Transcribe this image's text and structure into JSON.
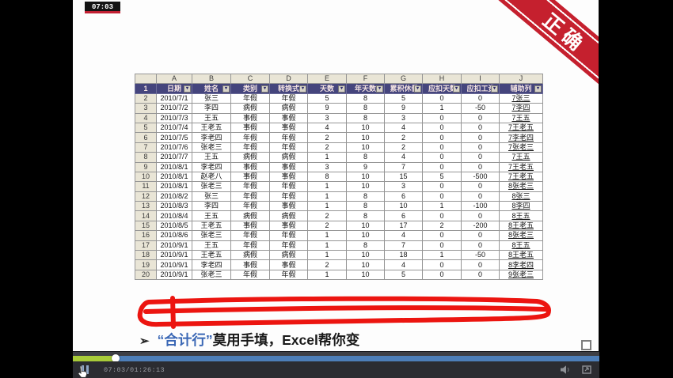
{
  "player": {
    "timestamp_badge": "07:03",
    "time_display": "07:03/01:26:13"
  },
  "slide": {
    "ribbon_label": "正确",
    "bullet_marker": "➢",
    "bullet_highlight": "“合计行”",
    "bullet_text": "莫用手填，Excel帮你变"
  },
  "spreadsheet": {
    "column_letters": [
      "A",
      "B",
      "C",
      "D",
      "E",
      "F",
      "G",
      "H",
      "I",
      "J"
    ],
    "header_row_number": "1",
    "headers": [
      "日期",
      "姓名",
      "类别",
      "转换式",
      "天数",
      "年天数",
      "累积休假",
      "应扣天数",
      "应扣工资",
      "辅助列"
    ],
    "rows": [
      {
        "num": "2",
        "cells": [
          "2010/7/1",
          "张三",
          "年假",
          "年假",
          "5",
          "8",
          "5",
          "0",
          "0",
          "7张三"
        ]
      },
      {
        "num": "3",
        "cells": [
          "2010/7/2",
          "李四",
          "病假",
          "病假",
          "9",
          "8",
          "9",
          "1",
          "-50",
          "7李四"
        ]
      },
      {
        "num": "4",
        "cells": [
          "2010/7/3",
          "王五",
          "事假",
          "事假",
          "3",
          "8",
          "3",
          "0",
          "0",
          "7王五"
        ]
      },
      {
        "num": "5",
        "cells": [
          "2010/7/4",
          "王老五",
          "事假",
          "事假",
          "4",
          "10",
          "4",
          "0",
          "0",
          "7王老五"
        ]
      },
      {
        "num": "6",
        "cells": [
          "2010/7/5",
          "李老四",
          "年假",
          "年假",
          "2",
          "10",
          "2",
          "0",
          "0",
          "7李老四"
        ]
      },
      {
        "num": "7",
        "cells": [
          "2010/7/6",
          "张老三",
          "年假",
          "年假",
          "2",
          "10",
          "2",
          "0",
          "0",
          "7张老三"
        ]
      },
      {
        "num": "8",
        "cells": [
          "2010/7/7",
          "王五",
          "病假",
          "病假",
          "1",
          "8",
          "4",
          "0",
          "0",
          "7王五"
        ]
      },
      {
        "num": "9",
        "cells": [
          "2010/8/1",
          "李老四",
          "事假",
          "事假",
          "3",
          "9",
          "7",
          "0",
          "0",
          "7王老五"
        ]
      },
      {
        "num": "10",
        "cells": [
          "2010/8/1",
          "赵老八",
          "事假",
          "事假",
          "8",
          "10",
          "15",
          "5",
          "-500",
          "7王老五"
        ]
      },
      {
        "num": "11",
        "cells": [
          "2010/8/1",
          "张老三",
          "年假",
          "年假",
          "1",
          "10",
          "3",
          "0",
          "0",
          "8张老三"
        ]
      },
      {
        "num": "12",
        "cells": [
          "2010/8/2",
          "张三",
          "年假",
          "年假",
          "1",
          "8",
          "6",
          "0",
          "0",
          "8张三"
        ]
      },
      {
        "num": "13",
        "cells": [
          "2010/8/3",
          "李四",
          "年假",
          "事假",
          "1",
          "8",
          "10",
          "1",
          "-100",
          "8李四"
        ]
      },
      {
        "num": "14",
        "cells": [
          "2010/8/4",
          "王五",
          "病假",
          "病假",
          "2",
          "8",
          "6",
          "0",
          "0",
          "8王五"
        ]
      },
      {
        "num": "15",
        "cells": [
          "2010/8/5",
          "王老五",
          "事假",
          "事假",
          "2",
          "10",
          "17",
          "2",
          "-200",
          "8王老五"
        ]
      },
      {
        "num": "16",
        "cells": [
          "2010/8/6",
          "张老三",
          "年假",
          "年假",
          "1",
          "10",
          "4",
          "0",
          "0",
          "8张老三"
        ]
      },
      {
        "num": "17",
        "cells": [
          "2010/9/1",
          "王五",
          "年假",
          "年假",
          "1",
          "8",
          "7",
          "0",
          "0",
          "8王五"
        ]
      },
      {
        "num": "18",
        "cells": [
          "2010/9/1",
          "王老五",
          "病假",
          "病假",
          "1",
          "10",
          "18",
          "1",
          "-50",
          "8王老五"
        ]
      },
      {
        "num": "19",
        "cells": [
          "2010/9/1",
          "李老四",
          "事假",
          "事假",
          "2",
          "10",
          "4",
          "0",
          "0",
          "8李老四"
        ]
      },
      {
        "num": "20",
        "cells": [
          "2010/9/1",
          "张老三",
          "年假",
          "年假",
          "1",
          "10",
          "5",
          "0",
          "0",
          "9张老三"
        ]
      }
    ]
  },
  "colors": {
    "header_bg": "#45457d",
    "letters_bg": "#e9e5d6",
    "ribbon_red": "#c5202e",
    "scribble_red": "#ec1510",
    "seek_played": "#a8cb39",
    "seek_rest": "#4d7eb8",
    "highlight_blue": "#3a67b5"
  }
}
